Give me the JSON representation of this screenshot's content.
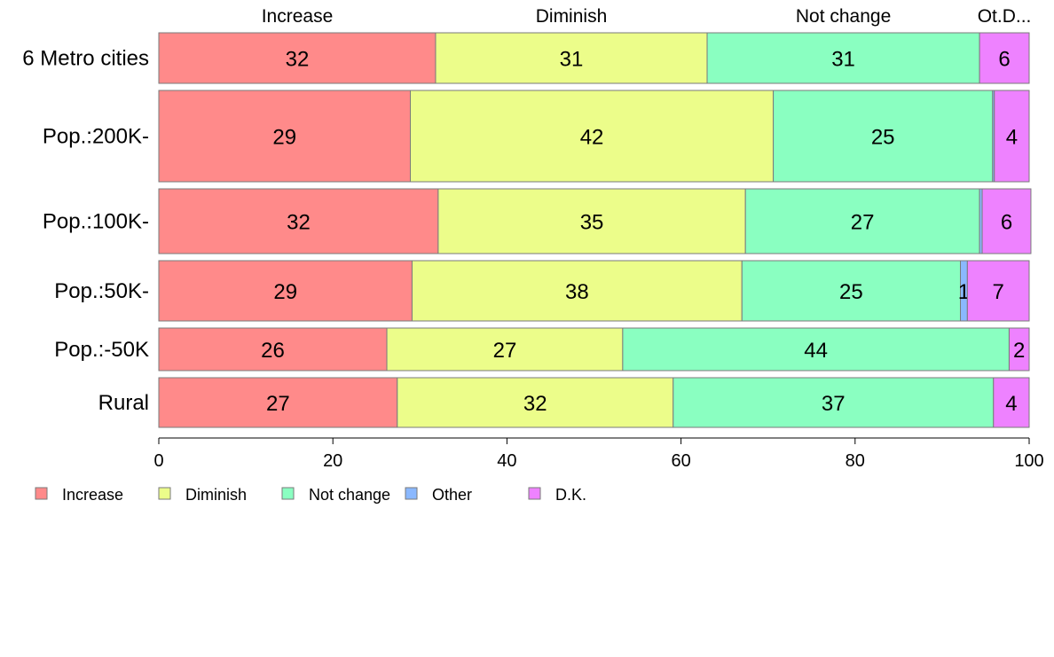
{
  "chart_data": {
    "type": "bar",
    "orientation": "horizontal",
    "stacked": true,
    "categories": [
      "6 Metro cities",
      "Pop.:200K-",
      "Pop.:100K-",
      "Pop.:50K-",
      "Pop.:-50K",
      "Rural"
    ],
    "series": [
      {
        "name": "Increase",
        "color": "#ff8a8a",
        "values": [
          31.8,
          28.9,
          32.1,
          29.1,
          26.2,
          27.4
        ],
        "labels": [
          "32",
          "29",
          "32",
          "29",
          "26",
          "27"
        ]
      },
      {
        "name": "Diminish",
        "color": "#ecfd8a",
        "values": [
          31.2,
          41.7,
          35.3,
          37.9,
          27.1,
          31.7
        ],
        "labels": [
          "31",
          "42",
          "35",
          "38",
          "27",
          "32"
        ]
      },
      {
        "name": "Not change",
        "color": "#8affc1",
        "values": [
          31.3,
          25.2,
          26.9,
          25.1,
          44.4,
          36.8
        ],
        "labels": [
          "31",
          "25",
          "27",
          "25",
          "44",
          "37"
        ]
      },
      {
        "name": "Other",
        "color": "#8ab8ff",
        "values": [
          0.0,
          0.2,
          0.3,
          0.8,
          0.0,
          0.0
        ],
        "labels": [
          "",
          "",
          "",
          "1",
          "",
          ""
        ]
      },
      {
        "name": "D.K.",
        "color": "#ee82ff",
        "values": [
          5.7,
          4.0,
          5.6,
          7.1,
          2.3,
          4.1
        ],
        "labels": [
          "6",
          "4",
          "6",
          "7",
          "2",
          "4"
        ]
      }
    ],
    "top_labels": [
      "Increase",
      "Diminish",
      "Not change",
      "Ot.D..."
    ],
    "xlim": [
      0,
      100
    ],
    "x_ticks": [
      0,
      20,
      40,
      60,
      80,
      100
    ],
    "grid": false,
    "legend_position": "bottom-left",
    "title": "",
    "xlabel": "",
    "ylabel": ""
  }
}
